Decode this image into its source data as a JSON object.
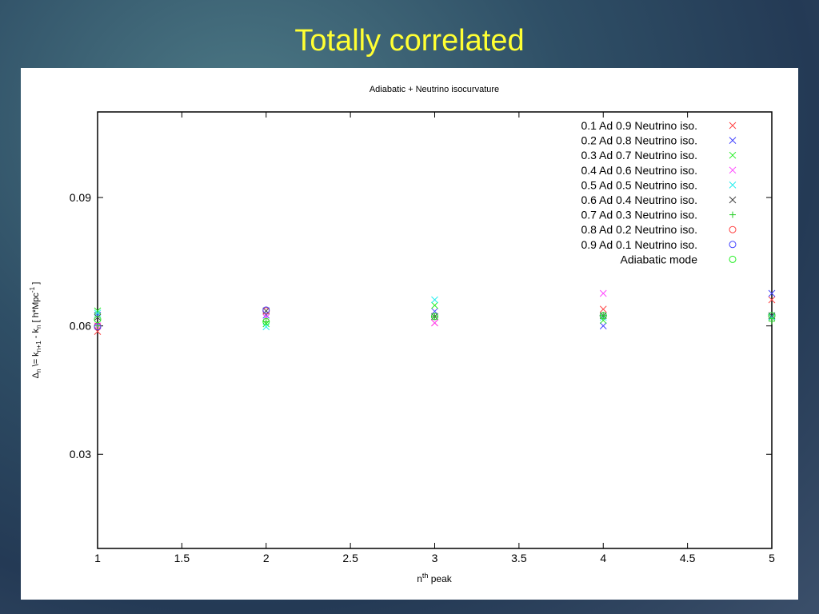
{
  "slide": {
    "title": "Totally correlated"
  },
  "chart_data": {
    "type": "scatter",
    "title": "Adiabatic + Neutrino isocurvature",
    "xlabel": "n^th peak",
    "ylabel": "Δ_n \\= k_{n+1} - k_n [ h*Mpc^-1 ]",
    "xlim": [
      1,
      5
    ],
    "ylim": [
      0.008,
      0.11
    ],
    "xticks": [
      "1",
      "1.5",
      "2",
      "2.5",
      "3",
      "3.5",
      "4",
      "4.5",
      "5"
    ],
    "yticks": [
      "0.03",
      "0.06",
      "0.09"
    ],
    "legend_position": "top-right",
    "grid": false,
    "x": [
      1,
      2,
      3,
      4,
      5
    ],
    "series": [
      {
        "name": "0.1 Ad 0.9 Neutrino iso.",
        "marker": "x",
        "color": "#ff4444",
        "values": [
          0.0587,
          0.062,
          0.0607,
          0.0639,
          0.0661
        ]
      },
      {
        "name": "0.2 Ad 0.8 Neutrino iso.",
        "marker": "x",
        "color": "#4444ff",
        "values": [
          0.0625,
          0.0625,
          0.0634,
          0.06,
          0.0676
        ]
      },
      {
        "name": "0.3 Ad 0.7 Neutrino iso.",
        "marker": "x",
        "color": "#22ee22",
        "values": [
          0.0635,
          0.0605,
          0.0648,
          0.0613,
          0.062
        ]
      },
      {
        "name": "0.4 Ad 0.6 Neutrino iso.",
        "marker": "x",
        "color": "#ff44ff",
        "values": [
          0.06,
          0.062,
          0.0607,
          0.0676,
          0.0622
        ]
      },
      {
        "name": "0.5 Ad 0.5 Neutrino iso.",
        "marker": "x",
        "color": "#22eeee",
        "values": [
          0.063,
          0.0598,
          0.0661,
          0.062,
          0.0622
        ]
      },
      {
        "name": "0.6 Ad 0.4 Neutrino iso.",
        "marker": "x",
        "color": "#444444",
        "values": [
          0.062,
          0.0635,
          0.0622,
          0.0624,
          0.0624
        ]
      },
      {
        "name": "0.7 Ad 0.3 Neutrino iso.",
        "marker": "+",
        "color": "#22cc22",
        "values": [
          0.06,
          0.061,
          0.0622,
          0.0624,
          0.0611
        ]
      },
      {
        "name": "0.8 Ad 0.2 Neutrino iso.",
        "marker": "o",
        "color": "#ff4444",
        "values": [
          0.06,
          0.0635,
          0.0622,
          0.0624,
          0.0624
        ]
      },
      {
        "name": "0.9 Ad 0.1 Neutrino iso.",
        "marker": "o",
        "color": "#4444ff",
        "values": [
          0.0598,
          0.0637,
          0.0622,
          0.0624,
          0.0624
        ]
      },
      {
        "name": "Adiabatic mode",
        "marker": "o",
        "color": "#22ee22",
        "values": [
          0.0615,
          0.061,
          0.0622,
          0.0624,
          0.0624
        ]
      }
    ]
  }
}
